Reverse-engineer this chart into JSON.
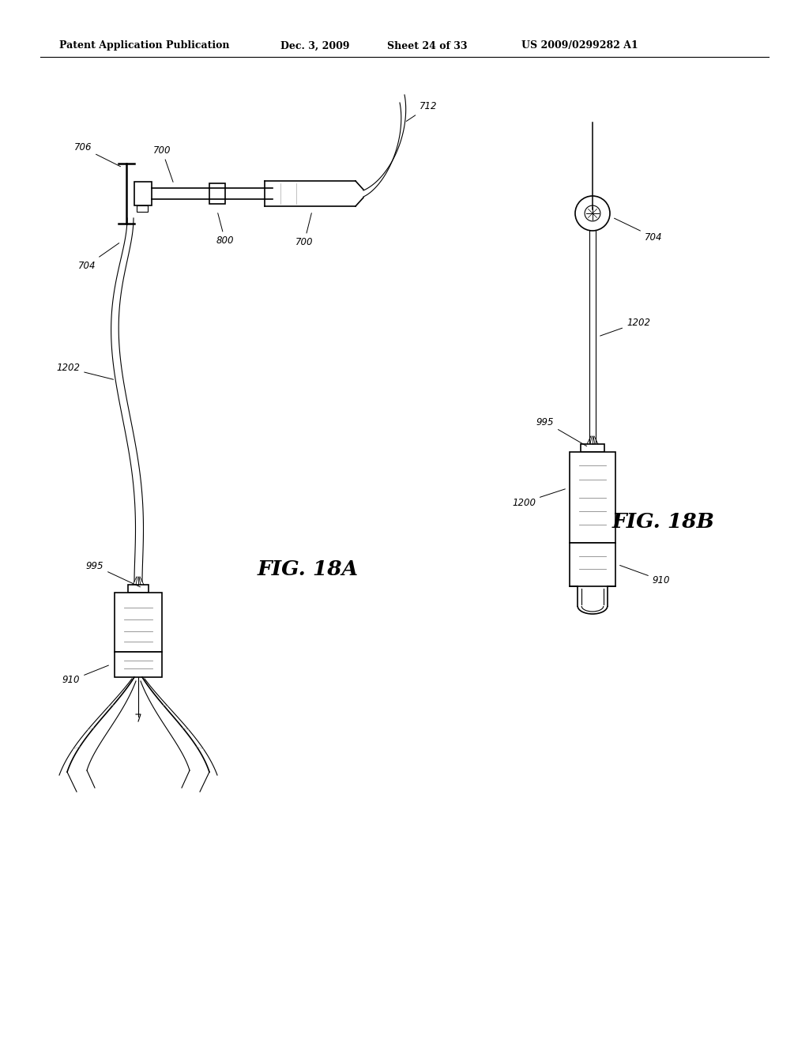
{
  "bg_color": "#ffffff",
  "line_color": "#000000",
  "header_text": "Patent Application Publication",
  "header_date": "Dec. 3, 2009",
  "header_sheet": "Sheet 24 of 33",
  "header_patent": "US 2009/0299282 A1"
}
